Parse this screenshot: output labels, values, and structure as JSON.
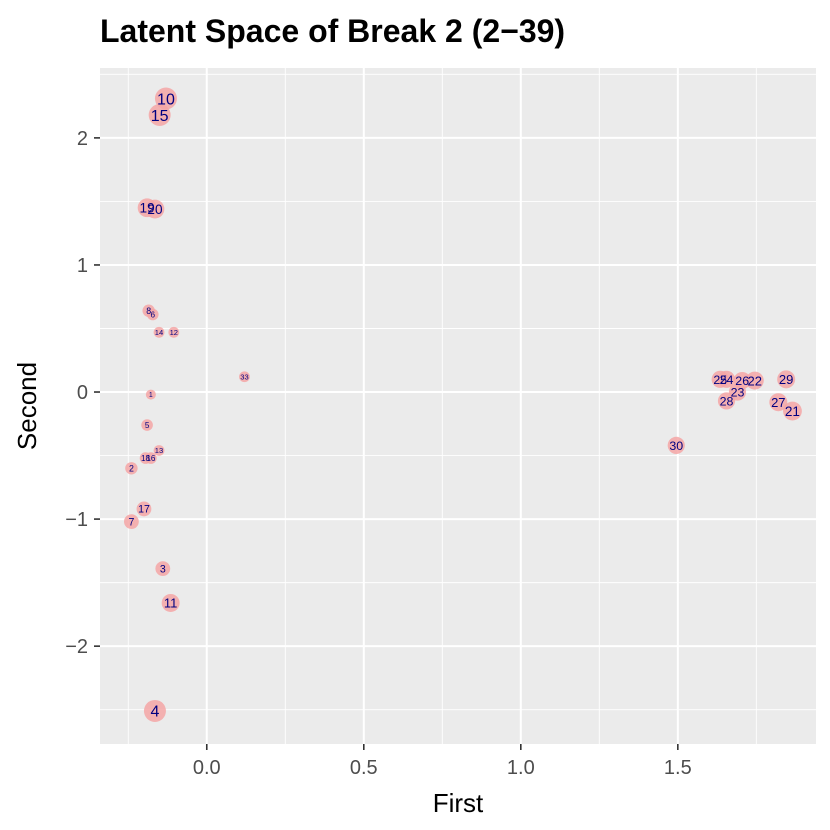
{
  "chart_data": {
    "type": "scatter",
    "title": "Latent Space of Break 2 (2−39)",
    "xlabel": "First",
    "ylabel": "Second",
    "xlim": [
      -0.34,
      1.94
    ],
    "ylim": [
      -2.77,
      2.55
    ],
    "xticks": [
      0.0,
      0.5,
      1.0,
      1.5
    ],
    "xtick_labels": [
      "0.0",
      "0.5",
      "1.0",
      "1.5"
    ],
    "yticks": [
      -2,
      -1,
      0,
      1,
      2
    ],
    "ytick_labels": [
      "−2",
      "−1",
      "0",
      "1",
      "2"
    ],
    "grid": true,
    "colors": {
      "panel": "#ebebeb",
      "grid": "#ffffff",
      "marker": "#f4a6a6",
      "label": "#000080"
    },
    "points": [
      {
        "label": "10",
        "x": -0.13,
        "y": 2.31,
        "size": 1.0
      },
      {
        "label": "15",
        "x": -0.15,
        "y": 2.18,
        "size": 1.0
      },
      {
        "label": "19",
        "x": -0.19,
        "y": 1.45,
        "size": 0.8
      },
      {
        "label": "20",
        "x": -0.165,
        "y": 1.44,
        "size": 0.8
      },
      {
        "label": "8",
        "x": -0.185,
        "y": 0.64,
        "size": 0.4
      },
      {
        "label": "6",
        "x": -0.172,
        "y": 0.61,
        "size": 0.35
      },
      {
        "label": "14",
        "x": -0.152,
        "y": 0.47,
        "size": 0.3
      },
      {
        "label": "12",
        "x": -0.105,
        "y": 0.47,
        "size": 0.3
      },
      {
        "label": "33",
        "x": 0.12,
        "y": 0.12,
        "size": 0.3
      },
      {
        "label": "1",
        "x": -0.178,
        "y": -0.02,
        "size": 0.25
      },
      {
        "label": "5",
        "x": -0.19,
        "y": -0.26,
        "size": 0.35
      },
      {
        "label": "18",
        "x": -0.195,
        "y": -0.52,
        "size": 0.35
      },
      {
        "label": "16",
        "x": -0.178,
        "y": -0.52,
        "size": 0.35
      },
      {
        "label": "13",
        "x": -0.152,
        "y": -0.46,
        "size": 0.3
      },
      {
        "label": "2",
        "x": -0.24,
        "y": -0.6,
        "size": 0.4
      },
      {
        "label": "17",
        "x": -0.2,
        "y": -0.92,
        "size": 0.55
      },
      {
        "label": "7",
        "x": -0.24,
        "y": -1.02,
        "size": 0.55
      },
      {
        "label": "3",
        "x": -0.14,
        "y": -1.39,
        "size": 0.55
      },
      {
        "label": "11",
        "x": -0.115,
        "y": -1.66,
        "size": 0.75
      },
      {
        "label": "4",
        "x": -0.165,
        "y": -2.51,
        "size": 1.0
      },
      {
        "label": "30",
        "x": 1.495,
        "y": -0.42,
        "size": 0.7
      },
      {
        "label": "25",
        "x": 1.635,
        "y": 0.1,
        "size": 0.7
      },
      {
        "label": "24",
        "x": 1.655,
        "y": 0.1,
        "size": 0.7
      },
      {
        "label": "26",
        "x": 1.705,
        "y": 0.09,
        "size": 0.7
      },
      {
        "label": "22",
        "x": 1.745,
        "y": 0.09,
        "size": 0.75
      },
      {
        "label": "23",
        "x": 1.69,
        "y": 0.0,
        "size": 0.7
      },
      {
        "label": "28",
        "x": 1.655,
        "y": -0.07,
        "size": 0.7
      },
      {
        "label": "29",
        "x": 1.845,
        "y": 0.1,
        "size": 0.75
      },
      {
        "label": "27",
        "x": 1.82,
        "y": -0.08,
        "size": 0.75
      },
      {
        "label": "21",
        "x": 1.865,
        "y": -0.15,
        "size": 0.8
      }
    ]
  }
}
